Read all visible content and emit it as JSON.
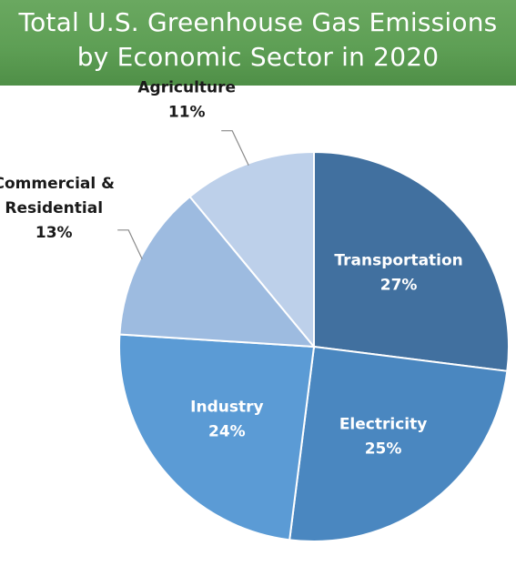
{
  "title": {
    "line1": "Total U.S. Greenhouse Gas Emissions",
    "line2": "by Economic Sector in 2020"
  },
  "colors": {
    "title_band": "#5e9f55",
    "title_text": "#ffffff"
  },
  "chart_data": {
    "type": "pie",
    "title": "Total U.S. Greenhouse Gas Emissions by Economic Sector in 2020",
    "start_angle_deg": 0,
    "direction": "clockwise",
    "slices": [
      {
        "name": "Transportation",
        "value": 27,
        "label_lines": [
          "Transportation"
        ],
        "pct_label": "27%",
        "color": "#41709f",
        "label_position": "inside"
      },
      {
        "name": "Electricity",
        "value": 25,
        "label_lines": [
          "Electricity"
        ],
        "pct_label": "25%",
        "color": "#4a87c0",
        "label_position": "inside"
      },
      {
        "name": "Industry",
        "value": 24,
        "label_lines": [
          "Industry"
        ],
        "pct_label": "24%",
        "color": "#5b9bd5",
        "label_position": "inside"
      },
      {
        "name": "Commercial & Residential",
        "value": 13,
        "label_lines": [
          "Commercial &",
          "Residential"
        ],
        "pct_label": "13%",
        "color": "#9dbbe0",
        "label_position": "outside-left"
      },
      {
        "name": "Agriculture",
        "value": 11,
        "label_lines": [
          "Agriculture"
        ],
        "pct_label": "11%",
        "color": "#bdd0ea",
        "label_position": "outside-top"
      }
    ]
  }
}
